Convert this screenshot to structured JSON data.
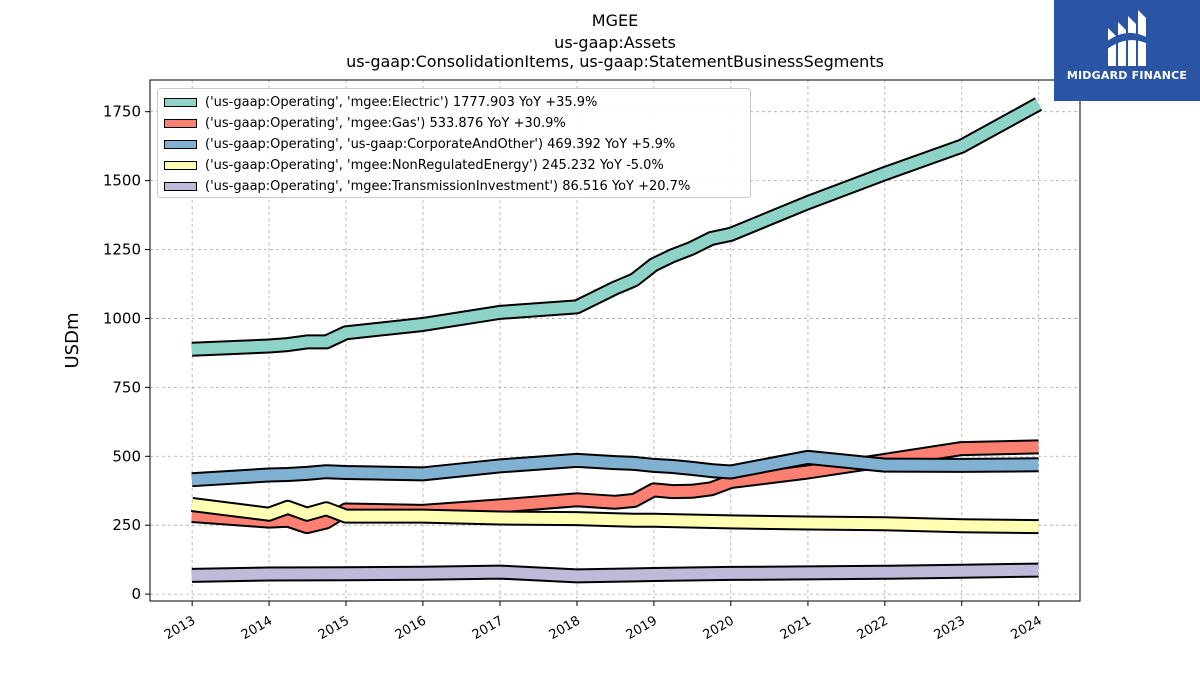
{
  "title_lines": [
    "MGEE",
    "us-gaap:Assets",
    "us-gaap:ConsolidationItems, us-gaap:StatementBusinessSegments"
  ],
  "logo": {
    "text": "MIDGARD FINANCE",
    "icon": "midgard-finance-logo-icon",
    "color": "#2a55a5"
  },
  "chart_data": {
    "type": "line",
    "title": "MGEE\nus-gaap:Assets\nus-gaap:ConsolidationItems, us-gaap:StatementBusinessSegments",
    "xlabel": "",
    "ylabel": "USDm",
    "xlim": [
      "2012-06-15",
      "2024-07-15"
    ],
    "ylim": [
      -25,
      1865
    ],
    "yticks": [
      0,
      250,
      500,
      750,
      1000,
      1250,
      1500,
      1750
    ],
    "xticks": [
      "2013",
      "2014",
      "2015",
      "2016",
      "2017",
      "2018",
      "2019",
      "2020",
      "2021",
      "2022",
      "2023",
      "2024"
    ],
    "grid": true,
    "legend_position": "top-left",
    "series": [
      {
        "name": "('us-gaap:Operating', 'mgee:Electric') 1777.903 YoY +35.9%",
        "color": "#8dd3c7",
        "points": [
          [
            "2012-12-31",
            888
          ],
          [
            "2013-12-31",
            900
          ],
          [
            "2014-03-31",
            905
          ],
          [
            "2014-06-30",
            915
          ],
          [
            "2014-09-30",
            915
          ],
          [
            "2014-12-31",
            948
          ],
          [
            "2015-12-31",
            978
          ],
          [
            "2016-12-31",
            1022
          ],
          [
            "2017-12-31",
            1042
          ],
          [
            "2018-06-30",
            1110
          ],
          [
            "2018-09-30",
            1140
          ],
          [
            "2018-12-31",
            1195
          ],
          [
            "2019-03-31",
            1228
          ],
          [
            "2019-06-30",
            1255
          ],
          [
            "2019-09-30",
            1290
          ],
          [
            "2019-12-31",
            1305
          ],
          [
            "2020-12-31",
            1420
          ],
          [
            "2021-12-31",
            1525
          ],
          [
            "2022-12-31",
            1625
          ],
          [
            "2023-12-31",
            1778
          ]
        ]
      },
      {
        "name": "('us-gaap:Operating', 'mgee:Gas') 533.876 YoY +30.9%",
        "color": "#fb8072",
        "points": [
          [
            "2012-12-31",
            285
          ],
          [
            "2013-12-31",
            265
          ],
          [
            "2014-03-31",
            268
          ],
          [
            "2014-06-30",
            245
          ],
          [
            "2014-09-30",
            262
          ],
          [
            "2014-12-31",
            305
          ],
          [
            "2015-12-31",
            300
          ],
          [
            "2016-12-31",
            320
          ],
          [
            "2017-12-31",
            342
          ],
          [
            "2018-06-30",
            333
          ],
          [
            "2018-09-30",
            340
          ],
          [
            "2018-12-31",
            378
          ],
          [
            "2019-03-31",
            372
          ],
          [
            "2019-06-30",
            373
          ],
          [
            "2019-09-30",
            382
          ],
          [
            "2019-12-31",
            408
          ],
          [
            "2020-12-31",
            443
          ],
          [
            "2021-12-31",
            485
          ],
          [
            "2022-12-31",
            528
          ],
          [
            "2023-12-31",
            534
          ]
        ]
      },
      {
        "name": "('us-gaap:Operating', 'us-gaap:CorporateAndOther') 469.392 YoY +5.9%",
        "color": "#80b1d3",
        "points": [
          [
            "2012-12-31",
            415
          ],
          [
            "2013-12-31",
            432
          ],
          [
            "2014-03-31",
            434
          ],
          [
            "2014-06-30",
            438
          ],
          [
            "2014-09-30",
            444
          ],
          [
            "2014-12-31",
            441
          ],
          [
            "2015-12-31",
            436
          ],
          [
            "2016-12-31",
            465
          ],
          [
            "2017-12-31",
            485
          ],
          [
            "2018-06-30",
            477
          ],
          [
            "2018-09-30",
            474
          ],
          [
            "2018-12-31",
            467
          ],
          [
            "2019-03-31",
            463
          ],
          [
            "2019-06-30",
            456
          ],
          [
            "2019-09-30",
            448
          ],
          [
            "2019-12-31",
            443
          ],
          [
            "2020-12-31",
            496
          ],
          [
            "2021-12-31",
            468
          ],
          [
            "2022-12-31",
            467
          ],
          [
            "2023-12-31",
            469
          ]
        ]
      },
      {
        "name": "('us-gaap:Operating', 'mgee:NonRegulatedEnergy') 245.232 YoY -5.0%",
        "color": "#ffffb3",
        "points": [
          [
            "2012-12-31",
            325
          ],
          [
            "2013-12-31",
            290
          ],
          [
            "2014-03-31",
            315
          ],
          [
            "2014-06-30",
            290
          ],
          [
            "2014-09-30",
            310
          ],
          [
            "2014-12-31",
            283
          ],
          [
            "2015-12-31",
            283
          ],
          [
            "2016-12-31",
            276
          ],
          [
            "2017-12-31",
            274
          ],
          [
            "2018-06-30",
            270
          ],
          [
            "2018-09-30",
            268
          ],
          [
            "2018-12-31",
            268
          ],
          [
            "2019-12-31",
            262
          ],
          [
            "2020-12-31",
            258
          ],
          [
            "2021-12-31",
            255
          ],
          [
            "2022-12-31",
            248
          ],
          [
            "2023-12-31",
            245
          ]
        ]
      },
      {
        "name": "('us-gaap:Operating', 'mgee:TransmissionInvestment') 86.516 YoY +20.7%",
        "color": "#bebada",
        "points": [
          [
            "2012-12-31",
            68
          ],
          [
            "2013-12-31",
            73
          ],
          [
            "2014-12-31",
            74
          ],
          [
            "2015-12-31",
            76
          ],
          [
            "2016-12-31",
            80
          ],
          [
            "2017-12-31",
            66
          ],
          [
            "2018-12-31",
            71
          ],
          [
            "2019-12-31",
            75
          ],
          [
            "2020-12-31",
            77
          ],
          [
            "2021-12-31",
            79
          ],
          [
            "2022-12-31",
            83
          ],
          [
            "2023-12-31",
            87
          ]
        ]
      }
    ]
  }
}
